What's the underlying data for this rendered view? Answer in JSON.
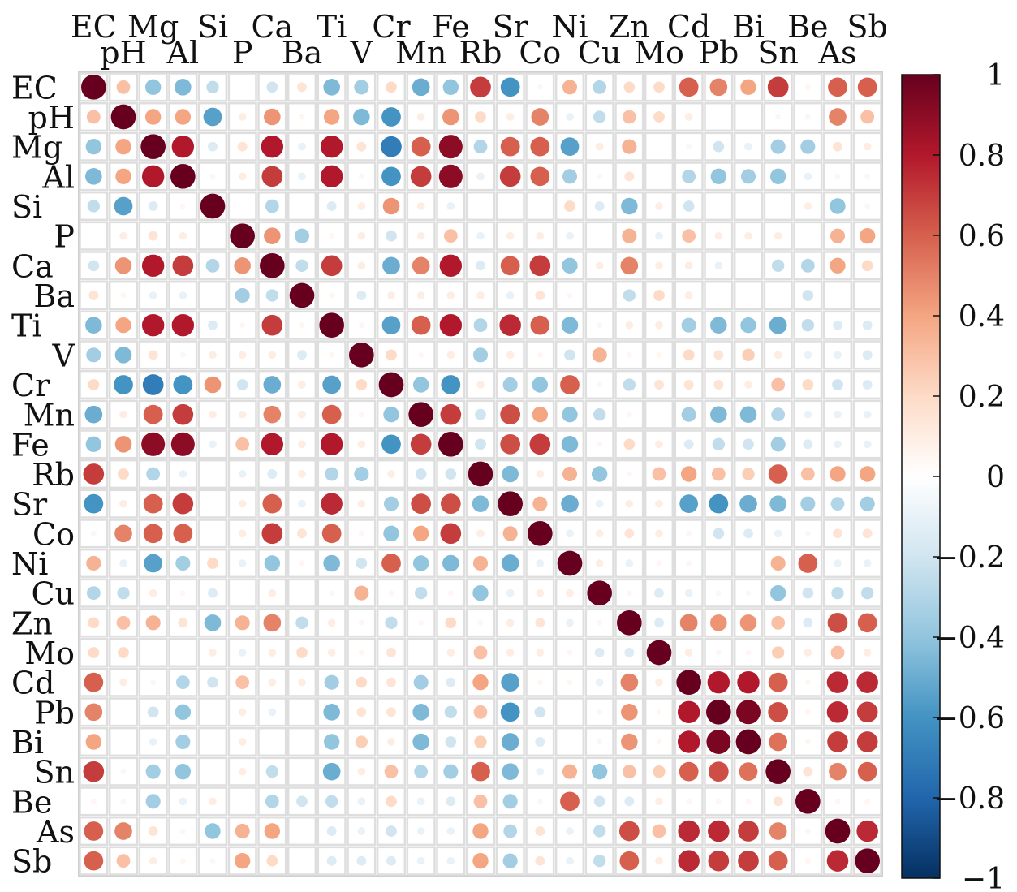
{
  "chart_data": {
    "type": "heatmap",
    "style": "correlation circle plot (lower/upper symmetric matrix), circle size and color proportional to correlation",
    "variables": [
      "EC",
      "pH",
      "Mg",
      "Al",
      "Si",
      "P",
      "Ca",
      "Ba",
      "Ti",
      "V",
      "Cr",
      "Mn",
      "Fe",
      "Rb",
      "Sr",
      "Co",
      "Ni",
      "Cu",
      "Zn",
      "Mo",
      "Cd",
      "Pb",
      "Bi",
      "Sn",
      "Be",
      "As",
      "Sb"
    ],
    "colorbar": {
      "min": -1,
      "max": 1,
      "ticks": [
        "1",
        "0.8",
        "0.6",
        "0.4",
        "0.2",
        "0",
        "−0.2",
        "−0.4",
        "−0.6",
        "−0.8",
        "−1"
      ],
      "tick_values": [
        1,
        0.8,
        0.6,
        0.4,
        0.2,
        0,
        -0.2,
        -0.4,
        -0.6,
        -0.8,
        -1
      ],
      "colors": [
        "#67001f",
        "#b2182b",
        "#d6604d",
        "#f4a582",
        "#fddbc7",
        "#ffffff",
        "#d1e5f0",
        "#92c5de",
        "#4393c3",
        "#2166ac",
        "#053061"
      ]
    },
    "correlations": {
      "EC-pH": 0.3,
      "EC-Mg": -0.4,
      "EC-Al": -0.45,
      "EC-Si": -0.25,
      "EC-Ca": -0.2,
      "EC-Ba": 0.15,
      "EC-Ti": -0.45,
      "EC-V": -0.35,
      "EC-Cr": 0.2,
      "EC-Mn": -0.5,
      "EC-Fe": -0.4,
      "EC-Rb": 0.7,
      "EC-Sr": -0.6,
      "EC-Co": -0.05,
      "EC-Ni": 0.35,
      "EC-Cu": -0.3,
      "EC-Zn": 0.2,
      "EC-Mo": 0.2,
      "EC-Cd": 0.6,
      "EC-Pb": 0.5,
      "EC-Bi": 0.4,
      "EC-Sn": 0.7,
      "EC-Be": 0.05,
      "EC-As": 0.6,
      "EC-Sb": 0.6,
      "pH-Mg": 0.4,
      "pH-Al": 0.4,
      "pH-Si": -0.55,
      "pH-P": 0.1,
      "pH-Ca": 0.45,
      "pH-Ba": 0.05,
      "pH-Ti": 0.4,
      "pH-V": -0.45,
      "pH-Cr": -0.6,
      "pH-Mn": 0.1,
      "pH-Fe": 0.45,
      "pH-Rb": 0.2,
      "pH-Sr": 0.1,
      "pH-Co": 0.5,
      "pH-Ni": -0.1,
      "pH-Cu": -0.25,
      "pH-Zn": 0.3,
      "pH-Mo": 0.2,
      "pH-Cd": 0.1,
      "pH-Sn": -0.05,
      "pH-Be": -0.05,
      "pH-As": 0.5,
      "pH-Sb": 0.3,
      "Mg-Al": 0.8,
      "Mg-Si": -0.15,
      "Mg-P": 0.15,
      "Mg-Ca": 0.8,
      "Mg-Ba": -0.1,
      "Mg-Ti": 0.8,
      "Mg-V": 0.15,
      "Mg-Cr": -0.7,
      "Mg-Mn": 0.6,
      "Mg-Fe": 0.9,
      "Mg-Rb": -0.3,
      "Mg-Sr": 0.6,
      "Mg-Co": 0.6,
      "Mg-Ni": -0.55,
      "Mg-Cu": 0.1,
      "Mg-Zn": 0.35,
      "Mg-Cd": -0.05,
      "Mg-Pb": -0.2,
      "Mg-Bi": -0.1,
      "Mg-Sn": -0.35,
      "Mg-Be": -0.35,
      "Mg-As": 0.15,
      "Mg-Sb": 0.1,
      "Al-Si": 0.05,
      "Al-P": 0.1,
      "Al-Ca": 0.7,
      "Al-Ba": -0.1,
      "Al-Ti": 0.8,
      "Al-V": -0.05,
      "Al-Cr": -0.6,
      "Al-Mn": 0.7,
      "Al-Fe": 0.9,
      "Al-Rb": -0.1,
      "Al-Sr": 0.7,
      "Al-Co": 0.6,
      "Al-Ni": -0.35,
      "Al-Cu": 0.05,
      "Al-Zn": 0.15,
      "Al-Cd": -0.3,
      "Al-Pb": -0.4,
      "Al-Bi": -0.35,
      "Al-Sn": -0.4,
      "Al-Be": -0.1,
      "Al-As": 0.05,
      "Al-Sb": 0.05,
      "Si-Ca": -0.3,
      "Si-Ti": -0.15,
      "Si-V": 0.1,
      "Si-Cr": 0.45,
      "Si-Mn": 0.1,
      "Si-Fe": -0.1,
      "Si-Ni": 0.2,
      "Si-Cu": -0.15,
      "Si-Zn": -0.45,
      "Si-Mo": 0.1,
      "Si-Cd": -0.2,
      "Si-Be": 0.1,
      "Si-As": -0.4,
      "Si-Sb": -0.05,
      "P-Ca": 0.45,
      "P-Ba": -0.35,
      "P-Ti": 0.05,
      "P-V": 0.1,
      "P-Cr": -0.2,
      "P-Mn": 0.1,
      "P-Fe": 0.3,
      "P-Rb": -0.1,
      "P-Sr": 0.1,
      "P-Co": 0.1,
      "P-Ni": -0.1,
      "P-Zn": 0.35,
      "P-Mo": -0.1,
      "P-Cd": 0.3,
      "P-Pb": 0.1,
      "P-Bi": 0.1,
      "P-Sn": 0.1,
      "P-As": 0.35,
      "P-Sb": 0.4,
      "Ca-Ba": -0.25,
      "Ca-Ti": 0.7,
      "Ca-V": 0.1,
      "Ca-Cr": -0.5,
      "Ca-Mn": 0.5,
      "Ca-Fe": 0.8,
      "Ca-Rb": -0.15,
      "Ca-Sr": 0.6,
      "Ca-Co": 0.7,
      "Ca-Ni": -0.4,
      "Ca-Cu": 0.1,
      "Ca-Zn": 0.5,
      "Ca-Mo": 0.1,
      "Ca-Cd": 0.1,
      "Ca-Pb": -0.1,
      "Ca-Sn": -0.25,
      "Ca-Be": -0.3,
      "Ca-As": 0.4,
      "Ca-Sb": 0.2,
      "Ba-Ti": 0.05,
      "Ba-V": -0.15,
      "Ba-Cr": 0.1,
      "Ba-Mn": 0.1,
      "Ba-Fe": 0.1,
      "Ba-Rb": 0.1,
      "Ba-Sr": -0.1,
      "Ba-Co": 0.15,
      "Ba-Ni": 0.05,
      "Ba-Zn": -0.25,
      "Ba-Mo": 0.2,
      "Ba-Cd": 0.1,
      "Ba-Be": -0.2,
      "Ti-V": 0.05,
      "Ti-Cr": -0.55,
      "Ti-Mn": 0.6,
      "Ti-Fe": 0.8,
      "Ti-Rb": -0.3,
      "Ti-Sr": 0.75,
      "Ti-Co": 0.6,
      "Ti-Ni": -0.45,
      "Ti-Cu": -0.05,
      "Ti-Zn": 0.1,
      "Ti-Mo": 0.1,
      "Ti-Cd": -0.35,
      "Ti-Pb": -0.45,
      "Ti-Bi": -0.4,
      "Ti-Sn": -0.5,
      "Ti-Be": -0.25,
      "Ti-As": -0.15,
      "Ti-Sb": -0.15,
      "V-Cr": 0.2,
      "V-Mn": 0.05,
      "V-Fe": 0.1,
      "V-Rb": -0.35,
      "V-Sr": 0.1,
      "V-Co": 0.05,
      "V-Ni": -0.2,
      "V-Cu": 0.35,
      "V-Zn": 0.05,
      "V-Mo": 0.05,
      "V-Cd": 0.2,
      "V-Pb": 0.15,
      "V-Bi": 0.25,
      "V-Sn": 0.1,
      "V-Be": -0.1,
      "V-As": -0.1,
      "V-Sb": -0.15,
      "Cr-Mn": -0.4,
      "Cr-Fe": -0.6,
      "Cr-Rb": 0.1,
      "Cr-Sr": -0.35,
      "Cr-Co": -0.4,
      "Cr-Ni": 0.6,
      "Cr-Cu": 0.05,
      "Cr-Zn": -0.25,
      "Cr-Mo": 0.15,
      "Cr-Cd": 0.15,
      "Cr-Pb": 0.15,
      "Cr-Bi": 0.1,
      "Cr-Sn": 0.3,
      "Cr-Be": 0.2,
      "Cr-As": -0.2,
      "Cr-Sb": -0.15,
      "Mn-Fe": 0.7,
      "Mn-Rb": -0.2,
      "Mn-Sr": 0.65,
      "Mn-Co": 0.4,
      "Mn-Ni": -0.4,
      "Mn-Cu": -0.25,
      "Mn-Zn": 0.05,
      "Mn-Cd": -0.35,
      "Mn-Pb": -0.45,
      "Mn-Bi": -0.45,
      "Mn-Sn": -0.3,
      "Mn-Be": -0.1,
      "Mn-As": -0.1,
      "Mn-Sb": -0.1,
      "Fe-Rb": -0.2,
      "Fe-Sr": 0.65,
      "Fe-Co": 0.7,
      "Fe-Ni": -0.45,
      "Fe-Cu": 0.05,
      "Fe-Zn": 0.2,
      "Fe-Mo": 0.1,
      "Fe-Cd": -0.15,
      "Fe-Pb": -0.25,
      "Fe-Bi": -0.2,
      "Fe-Sn": -0.35,
      "Fe-Be": -0.15,
      "Fe-As": -0.1,
      "Fe-Sb": -0.1,
      "Rb-Sr": -0.45,
      "Rb-Co": 0.1,
      "Rb-Ni": 0.35,
      "Rb-Cu": -0.4,
      "Rb-Zn": 0.05,
      "Rb-Mo": 0.3,
      "Rb-Cd": 0.4,
      "Rb-Pb": 0.3,
      "Rb-Bi": 0.25,
      "Rb-Sn": 0.6,
      "Rb-Be": 0.3,
      "Rb-As": 0.4,
      "Rb-Sb": 0.4,
      "Sr-Co": 0.35,
      "Sr-Ni": -0.5,
      "Sr-Cu": -0.1,
      "Sr-Zn": 0.1,
      "Sr-Mo": 0.1,
      "Sr-Cd": -0.55,
      "Sr-Pb": -0.6,
      "Sr-Bi": -0.5,
      "Sr-Sn": -0.45,
      "Sr-Be": -0.35,
      "Sr-As": -0.3,
      "Sr-Sb": -0.35,
      "Co-Ni": -0.1,
      "Co-Cu": 0.1,
      "Co-Zn": 0.15,
      "Co-Mo": 0.1,
      "Co-Cd": 0.05,
      "Co-Pb": -0.2,
      "Co-Bi": -0.15,
      "Co-Sn": -0.1,
      "Co-Be": -0.05,
      "Co-As": 0.15,
      "Co-Sb": 0.15,
      "Ni-Cu": 0.1,
      "Ni-Zn": -0.1,
      "Ni-Mo": 0.05,
      "Ni-Cd": 0.05,
      "Ni-Sn": 0.35,
      "Ni-Be": 0.6,
      "Ni-As": -0.1,
      "Ni-Sb": -0.1,
      "Cu-Zn": 0.05,
      "Cu-Mo": -0.15,
      "Cu-Cd": -0.1,
      "Cu-Pb": -0.05,
      "Cu-Bi": -0.05,
      "Cu-Sn": -0.4,
      "Cu-Be": -0.2,
      "Cu-As": -0.25,
      "Cu-Sb": -0.25,
      "Zn-Mo": -0.15,
      "Zn-Cd": 0.5,
      "Zn-Pb": 0.45,
      "Zn-Bi": 0.45,
      "Zn-Sn": 0.3,
      "Zn-Be": -0.15,
      "Zn-As": 0.65,
      "Zn-Sb": 0.6,
      "Mo-Cd": 0.1,
      "Mo-Pb": 0.05,
      "Mo-Bi": 0.05,
      "Mo-Sn": 0.25,
      "Mo-Be": 0.1,
      "Mo-As": 0.3,
      "Mo-Sb": 0.1,
      "Cd-Pb": 0.8,
      "Cd-Bi": 0.8,
      "Cd-Sn": 0.6,
      "Cd-Be": 0.05,
      "Cd-As": 0.75,
      "Cd-Sb": 0.75,
      "Pb-Bi": 0.95,
      "Pb-Sn": 0.65,
      "Pb-Be": 0.05,
      "Pb-As": 0.75,
      "Pb-Sb": 0.7,
      "Bi-Sn": 0.55,
      "Bi-Be": 0.05,
      "Bi-As": 0.7,
      "Bi-Sb": 0.7,
      "Sn-Be": 0.15,
      "Sn-As": 0.5,
      "Sn-Sb": 0.6,
      "Be-As": 0.05,
      "Be-Sb": 0.05,
      "As-Sb": 0.75
    }
  }
}
